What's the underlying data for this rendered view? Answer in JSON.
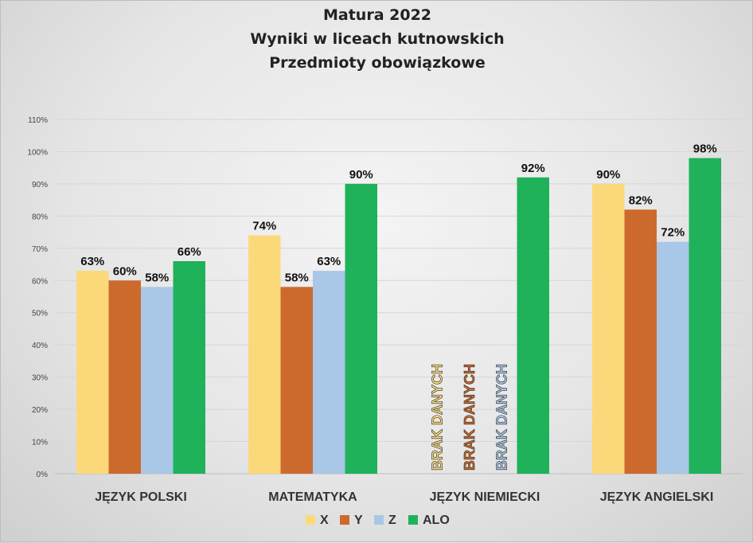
{
  "chart_data": {
    "type": "bar",
    "title": [
      "Matura 2022",
      "Wyniki w liceach kutnowskich",
      "Przedmioty obowiązkowe"
    ],
    "categories": [
      "JĘZYK POLSKI",
      "MATEMATYKA",
      "JĘZYK NIEMIECKI",
      "JĘZYK ANGIELSKI"
    ],
    "series": [
      {
        "name": "X",
        "color": "#fbd97b",
        "values": [
          63,
          74,
          null,
          90
        ]
      },
      {
        "name": "Y",
        "color": "#cc6a2d",
        "values": [
          60,
          58,
          null,
          82
        ]
      },
      {
        "name": "Z",
        "color": "#a9c7e6",
        "values": [
          58,
          63,
          null,
          72
        ]
      },
      {
        "name": "ALO",
        "color": "#1fb25a",
        "values": [
          66,
          90,
          92,
          98
        ]
      }
    ],
    "value_labels": [
      [
        "63%",
        "74%",
        "",
        "90%"
      ],
      [
        "60%",
        "58%",
        "",
        "82%"
      ],
      [
        "58%",
        "63%",
        "",
        "72%"
      ],
      [
        "66%",
        "90%",
        "92%",
        "98%"
      ]
    ],
    "missing_label": "BRAK DANYCH",
    "ylim": [
      0,
      110
    ],
    "yticks": [
      "0%",
      "10%",
      "20%",
      "30%",
      "40%",
      "50%",
      "60%",
      "70%",
      "80%",
      "90%",
      "100%",
      "110%"
    ],
    "grid": true,
    "legend_position": "bottom"
  }
}
